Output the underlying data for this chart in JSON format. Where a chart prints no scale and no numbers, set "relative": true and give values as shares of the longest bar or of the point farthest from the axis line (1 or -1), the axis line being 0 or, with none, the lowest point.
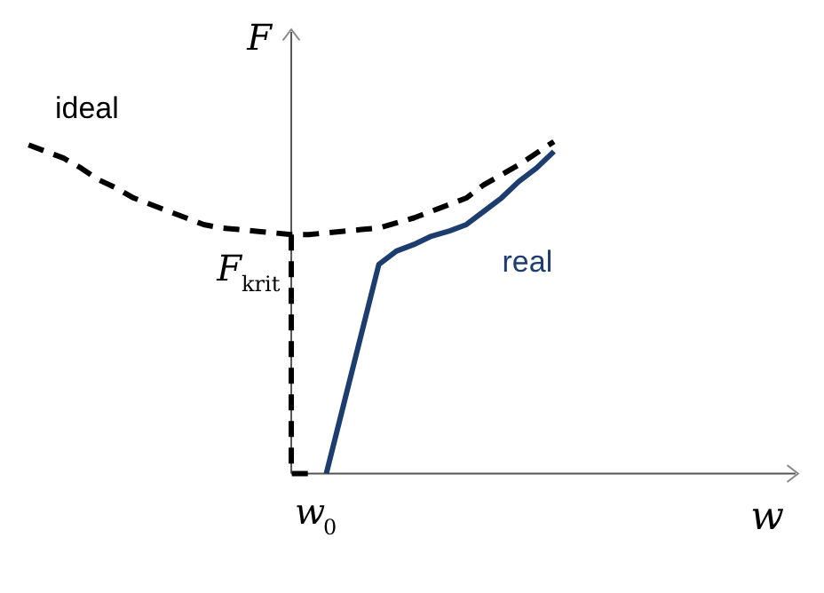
{
  "chart_data": {
    "type": "line",
    "relative": true,
    "xlabel": "w",
    "ylabel": "F",
    "categories": [
      null,
      null,
      null,
      null,
      null,
      null,
      null,
      null,
      null,
      null,
      null,
      null,
      null,
      null,
      null,
      null,
      null,
      null,
      null,
      null,
      null,
      null,
      null,
      null,
      null,
      null,
      null,
      null,
      null,
      null,
      null
    ],
    "series": [
      {
        "name": "ideal",
        "color": "#000000",
        "line_style": "dashed",
        "values": [
          0.99,
          0.97,
          0.95,
          0.92,
          0.885,
          0.86,
          0.83,
          0.81,
          0.79,
          0.77,
          0.75,
          0.74,
          0.735,
          0.73,
          0.725,
          0.72,
          0.72,
          0.725,
          0.73,
          0.735,
          0.74,
          0.755,
          0.77,
          0.79,
          0.81,
          0.83,
          0.87,
          0.9,
          0.93,
          0.965,
          1.0
        ]
      },
      {
        "type": "step",
        "color": "#000000",
        "line_style": "dashed",
        "values": [
          null,
          null,
          null,
          null,
          null,
          null,
          null,
          null,
          null,
          null,
          null,
          null,
          null,
          null,
          null,
          0.72,
          0,
          null,
          null,
          null,
          null,
          null,
          null,
          null,
          null,
          null,
          null,
          null,
          null,
          null,
          null
        ]
      },
      {
        "name": "real",
        "color": "#1c3d6e",
        "line_style": "solid",
        "values": [
          null,
          null,
          null,
          null,
          null,
          null,
          null,
          null,
          null,
          null,
          null,
          null,
          null,
          null,
          null,
          null,
          null,
          0,
          0.21,
          0.42,
          0.63,
          0.67,
          0.69,
          0.715,
          0.73,
          0.75,
          0.79,
          0.83,
          0.88,
          0.92,
          0.97
        ]
      }
    ],
    "annotations": [
      {
        "text": "F$_{krit}$",
        "y": 0.72
      },
      "w$_{0}$"
    ],
    "marker": "none"
  }
}
